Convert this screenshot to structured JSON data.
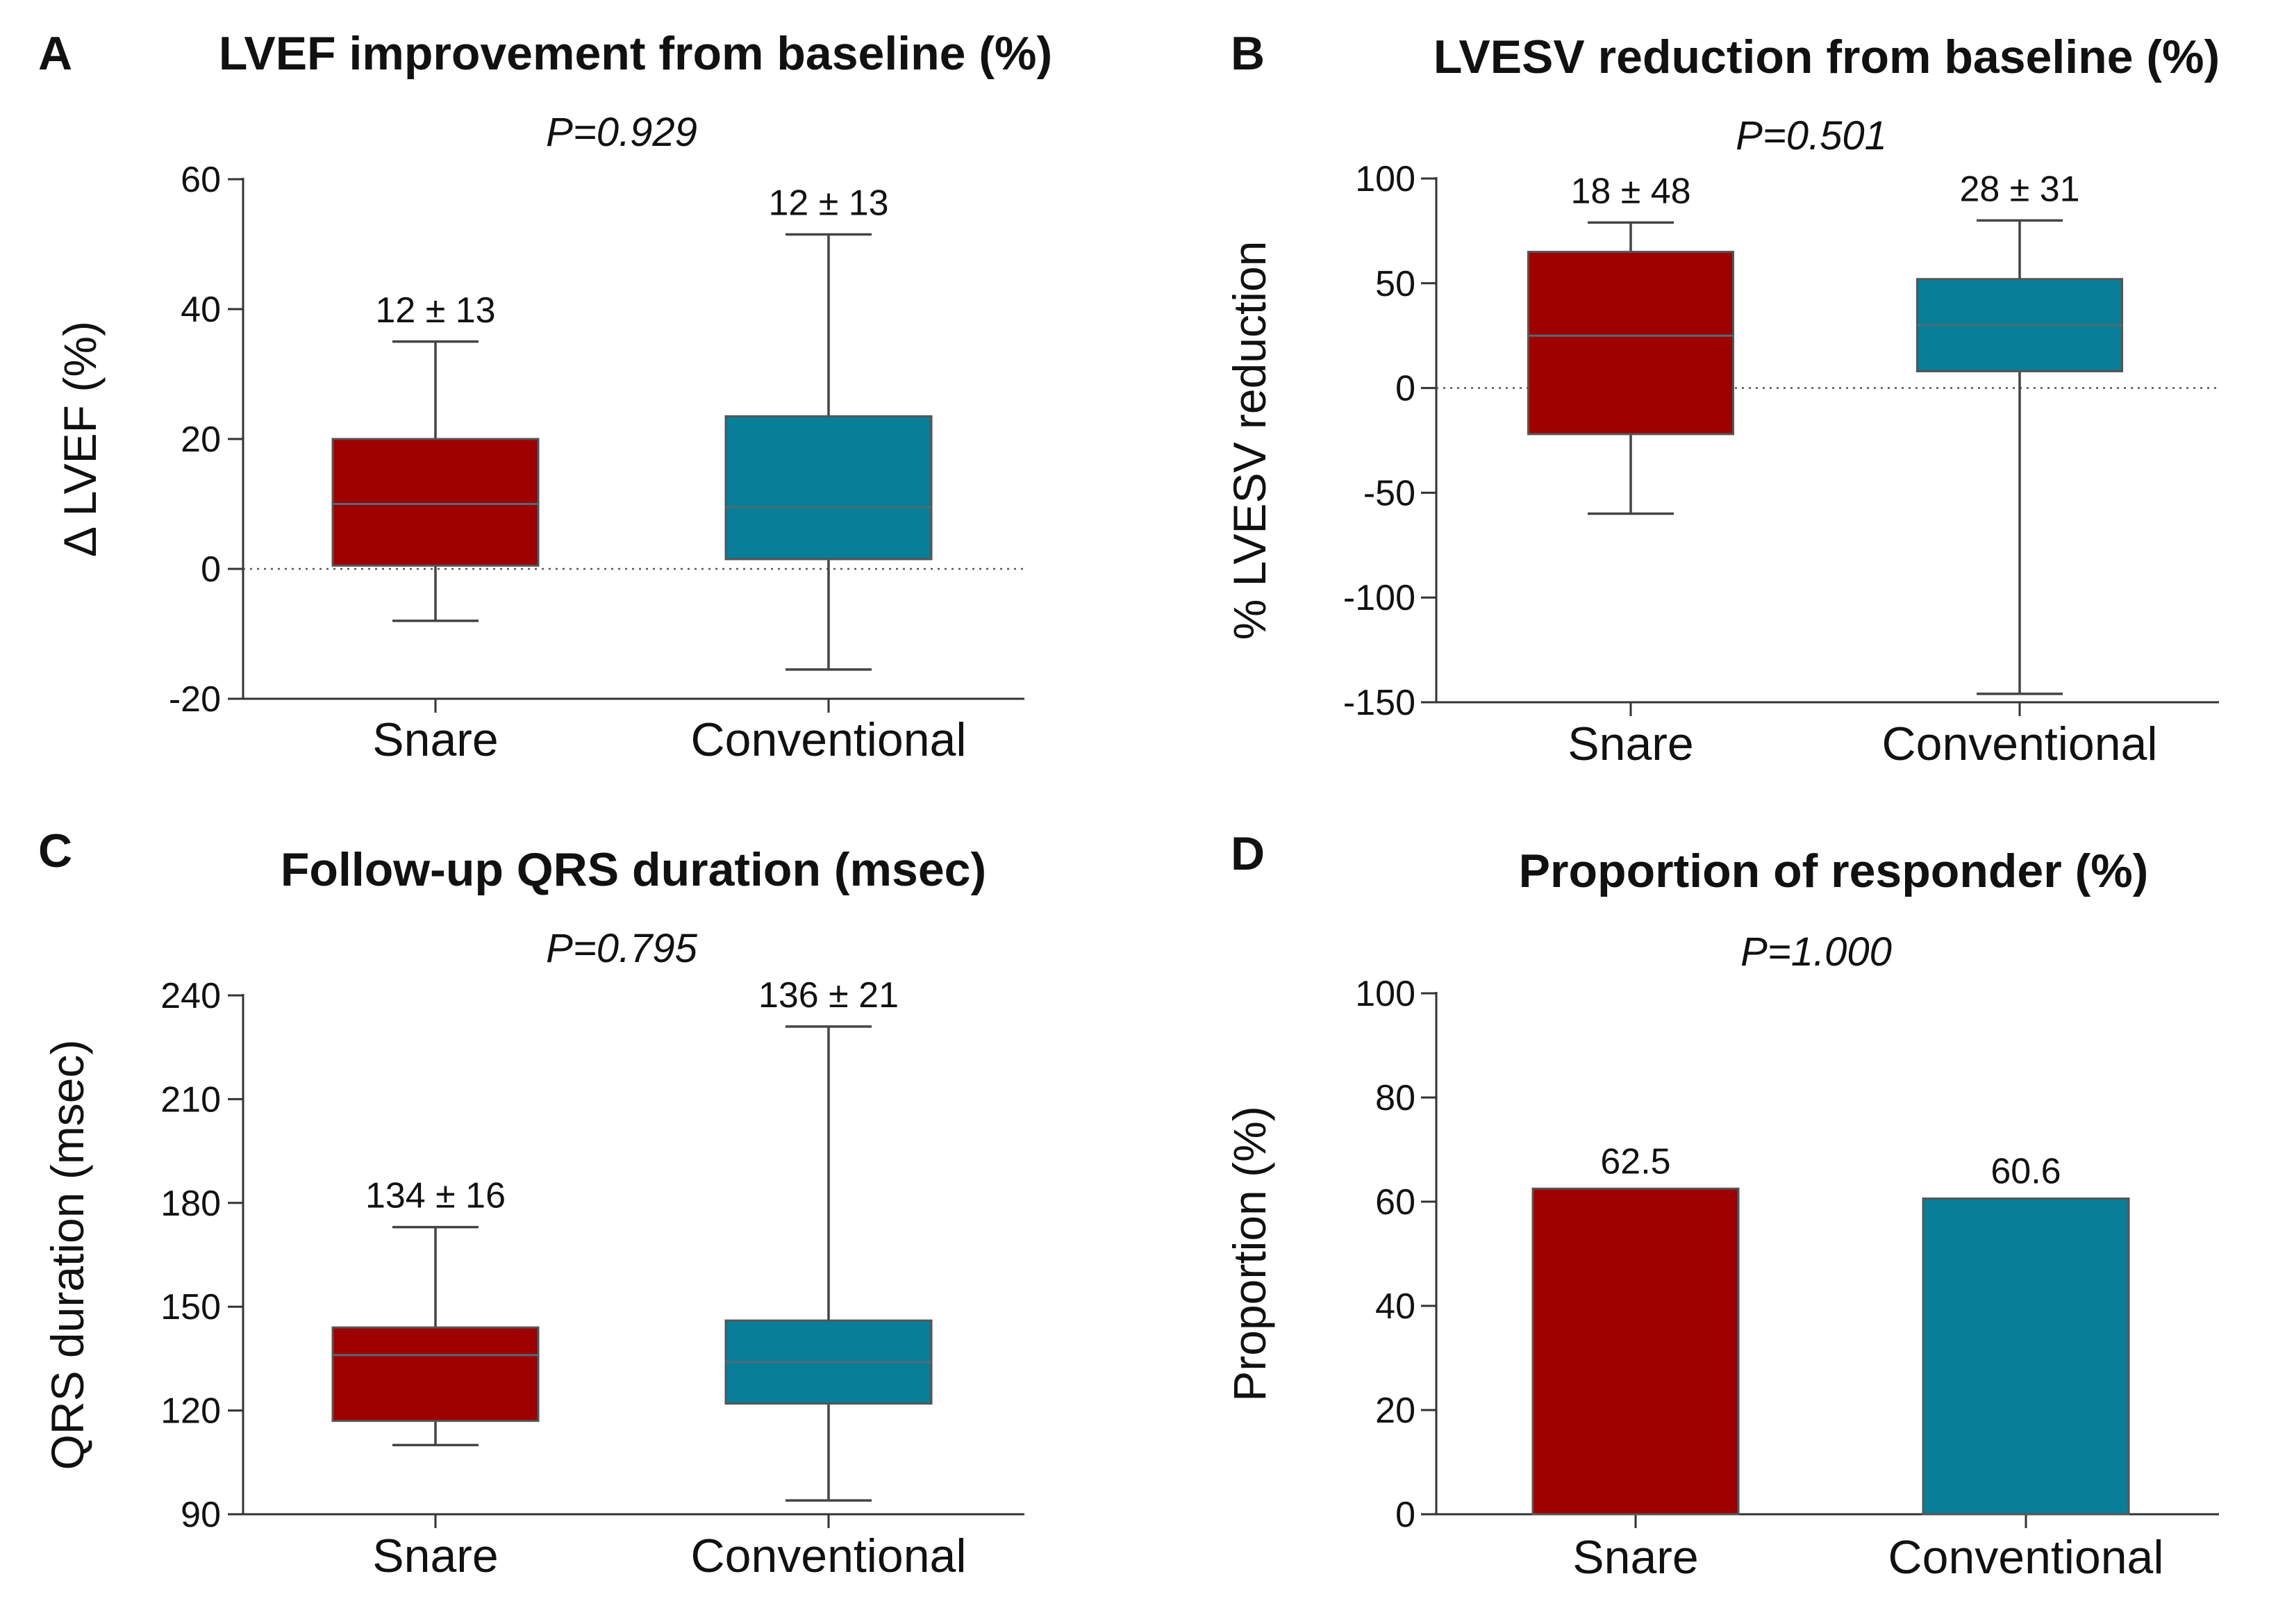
{
  "colors": {
    "snare": "#9E0000",
    "conventional": "#087E98",
    "edge": "#555555",
    "median": "#4d6d78"
  },
  "chart_data": [
    {
      "letter": "A",
      "type": "box",
      "title": "LVEF improvement from baseline (%)",
      "p_value": "P=0.929",
      "ylabel": "Δ LVEF (%)",
      "ylim": [
        -20,
        60
      ],
      "ticks": [
        -20,
        0,
        20,
        40,
        60
      ],
      "zero_line": true,
      "categories": [
        "Snare",
        "Conventional"
      ],
      "boxes": [
        {
          "name": "Snare",
          "min": -8,
          "q1": 0.5,
          "median": 10,
          "q3": 20,
          "max": 35,
          "label": "12 ± 13"
        },
        {
          "name": "Conventional",
          "min": -15.5,
          "q1": 1.5,
          "median": 9.5,
          "q3": 23.5,
          "max": 51.5,
          "label": "12 ± 13"
        }
      ]
    },
    {
      "letter": "B",
      "type": "box",
      "title": "LVESV reduction from baseline (%)",
      "p_value": "P=0.501",
      "ylabel": "% LVESV reduction",
      "ylim": [
        -150,
        100
      ],
      "ticks": [
        -150,
        -100,
        -50,
        0,
        50,
        100
      ],
      "zero_line": true,
      "categories": [
        "Snare",
        "Conventional"
      ],
      "boxes": [
        {
          "name": "Snare",
          "min": -60,
          "q1": -22,
          "median": 25,
          "q3": 65,
          "max": 79,
          "label": "18 ± 48"
        },
        {
          "name": "Conventional",
          "min": -146,
          "q1": 8,
          "median": 30,
          "q3": 52,
          "max": 80,
          "label": "28 ± 31"
        }
      ]
    },
    {
      "letter": "C",
      "type": "box",
      "title": "Follow-up QRS duration (msec)",
      "p_value": "P=0.795",
      "ylabel": "QRS duration (msec)",
      "ylim": [
        90,
        240
      ],
      "ticks": [
        90,
        120,
        150,
        180,
        210,
        240
      ],
      "zero_line": false,
      "categories": [
        "Snare",
        "Conventional"
      ],
      "boxes": [
        {
          "name": "Snare",
          "min": 110,
          "q1": 117,
          "median": 136,
          "q3": 144,
          "max": 173,
          "label": "134 ± 16"
        },
        {
          "name": "Conventional",
          "min": 94,
          "q1": 122,
          "median": 134,
          "q3": 146,
          "max": 231,
          "label": "136 ± 21"
        }
      ]
    },
    {
      "letter": "D",
      "type": "bar",
      "title": "Proportion of responder (%)",
      "p_value": "P=1.000",
      "ylabel": "Proportion (%)",
      "ylim": [
        0,
        100
      ],
      "ticks": [
        0,
        20,
        40,
        60,
        80,
        100
      ],
      "zero_line": false,
      "categories": [
        "Snare",
        "Conventional"
      ],
      "values": [
        62.5,
        60.6
      ],
      "value_labels": [
        "62.5",
        "60.6"
      ]
    }
  ]
}
